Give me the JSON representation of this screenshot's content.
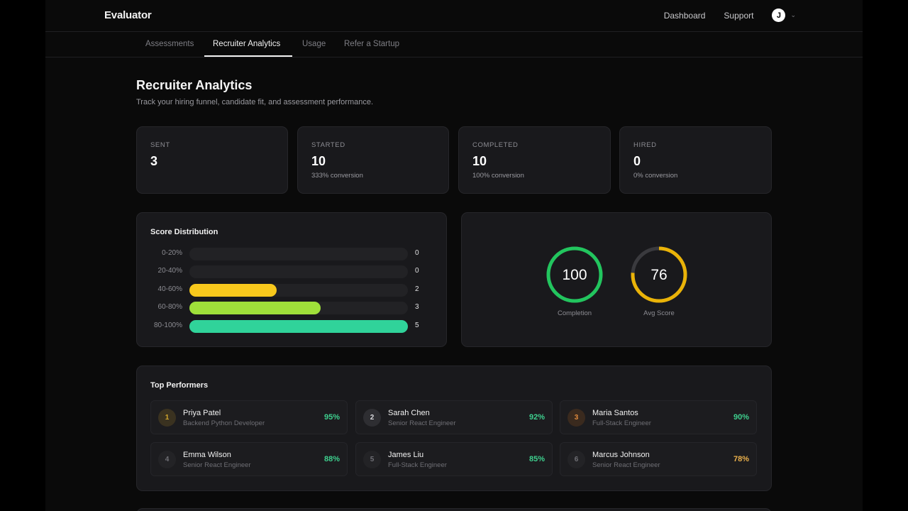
{
  "app": {
    "brand": "Evaluator"
  },
  "topnav": {
    "links": [
      "Dashboard",
      "Support"
    ],
    "avatar_initial": "J"
  },
  "tabs": [
    {
      "label": "Assessments",
      "active": false
    },
    {
      "label": "Recruiter Analytics",
      "active": true
    },
    {
      "label": "Usage",
      "active": false
    },
    {
      "label": "Refer a Startup",
      "active": false
    }
  ],
  "page": {
    "title": "Recruiter Analytics",
    "subtitle": "Track your hiring funnel, candidate fit, and assessment performance."
  },
  "stats": [
    {
      "label": "SENT",
      "value": "3",
      "sub": ""
    },
    {
      "label": "STARTED",
      "value": "10",
      "sub": "333% conversion"
    },
    {
      "label": "COMPLETED",
      "value": "10",
      "sub": "100% conversion"
    },
    {
      "label": "HIRED",
      "value": "0",
      "sub": "0% conversion"
    }
  ],
  "score_distribution": {
    "title": "Score Distribution",
    "max": 5,
    "rows": [
      {
        "label": "0-20%",
        "count": 0,
        "color": "#f5c518"
      },
      {
        "label": "20-40%",
        "count": 0,
        "color": "#f5c518"
      },
      {
        "label": "40-60%",
        "count": 2,
        "color": "#f8c81c"
      },
      {
        "label": "60-80%",
        "count": 3,
        "color": "#9fe03a"
      },
      {
        "label": "80-100%",
        "count": 5,
        "color": "#30d39a"
      }
    ]
  },
  "rings": [
    {
      "label": "Completion",
      "value": 100,
      "percent": 100,
      "color": "#22c55e"
    },
    {
      "label": "Avg Score",
      "value": 76,
      "percent": 76,
      "color": "#eab308"
    }
  ],
  "top_performers": {
    "title": "Top Performers",
    "items": [
      {
        "rank": "1",
        "name": "Priya Patel",
        "role": "Backend Python Developer",
        "score": "95%",
        "score_color": "#3ecf8e",
        "rank_bg": "#3a3220",
        "rank_color": "#d4a72c"
      },
      {
        "rank": "2",
        "name": "Sarah Chen",
        "role": "Senior React Engineer",
        "score": "92%",
        "score_color": "#3ecf8e",
        "rank_bg": "#2e2e32",
        "rank_color": "#d8d8dc"
      },
      {
        "rank": "3",
        "name": "Maria Santos",
        "role": "Full-Stack Engineer",
        "score": "90%",
        "score_color": "#3ecf8e",
        "rank_bg": "#3a2a1e",
        "rank_color": "#e08a3c"
      },
      {
        "rank": "4",
        "name": "Emma Wilson",
        "role": "Senior React Engineer",
        "score": "88%",
        "score_color": "#3ecf8e",
        "rank_bg": "#232326",
        "rank_color": "#6f6f75"
      },
      {
        "rank": "5",
        "name": "James Liu",
        "role": "Full-Stack Engineer",
        "score": "85%",
        "score_color": "#3ecf8e",
        "rank_bg": "#232326",
        "rank_color": "#6f6f75"
      },
      {
        "rank": "6",
        "name": "Marcus Johnson",
        "role": "Senior React Engineer",
        "score": "78%",
        "score_color": "#eab04c",
        "rank_bg": "#232326",
        "rank_color": "#6f6f75"
      }
    ]
  }
}
